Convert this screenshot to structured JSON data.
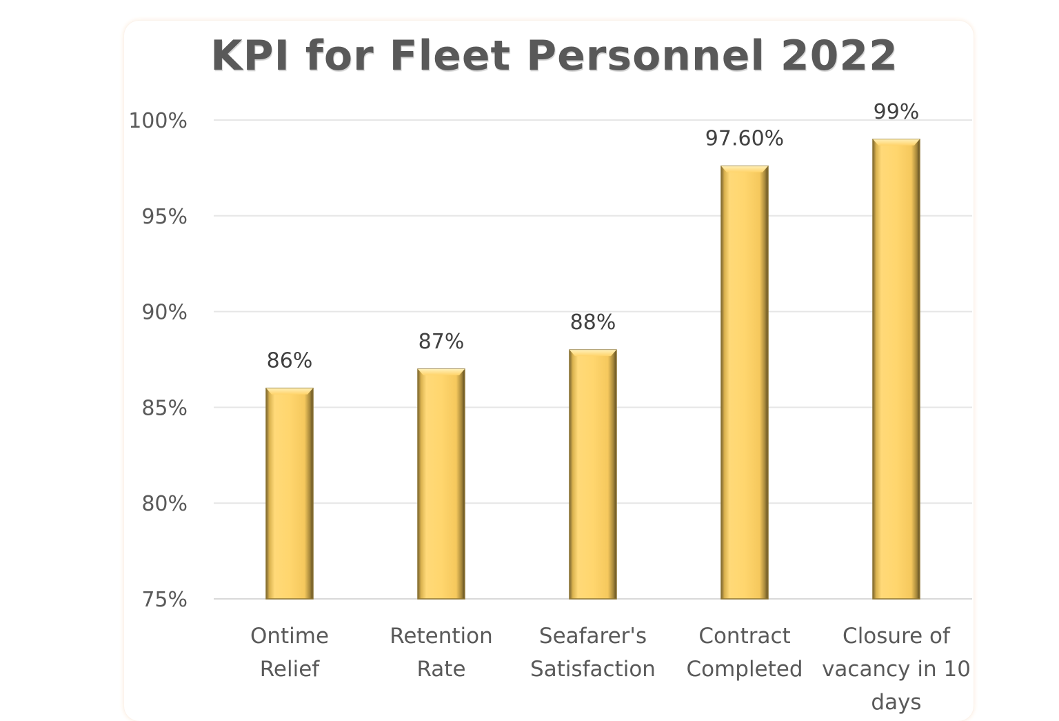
{
  "chart_data": {
    "type": "bar",
    "title": "KPI for Fleet Personnel 2022",
    "categories": [
      [
        "Ontime",
        "Relief"
      ],
      [
        "Retention",
        "Rate"
      ],
      [
        "Seafarer's",
        "Satisfaction"
      ],
      [
        "Contract",
        "Completed"
      ],
      [
        "Closure of",
        "vacancy in 10",
        "days"
      ]
    ],
    "values": [
      86,
      87,
      88,
      97.6,
      99
    ],
    "data_labels": [
      "86%",
      "87%",
      "88%",
      "97.60%",
      "99%"
    ],
    "ylim": [
      75,
      100
    ],
    "yticks": [
      75,
      80,
      85,
      90,
      95,
      100
    ],
    "ytick_labels": [
      "75%",
      "80%",
      "85%",
      "90%",
      "95%",
      "100%"
    ],
    "xlabel": "",
    "ylabel": "",
    "grid": true,
    "bar_color": "#FFD56B",
    "bar_edge_color": "#8C7433"
  }
}
